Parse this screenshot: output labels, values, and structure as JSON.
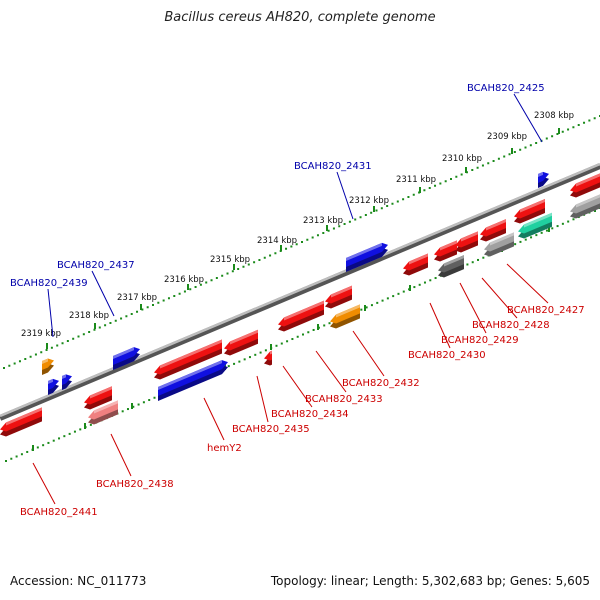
{
  "title": "Bacillus cereus AH820, complete genome",
  "footer": {
    "accession": "Accession: NC_011773",
    "summary": "Topology: linear; Length: 5,302,683 bp; Genes: 5,605"
  },
  "colors": {
    "forward_gene": "#1010e0",
    "reverse_gene": "#ee1111",
    "rrna_gene": "#f08c00",
    "pseudo_gene": "#f08080",
    "misc_gene": "#a0a0a0",
    "dark_gene": "#606060",
    "ncrna_gene": "#20d0a0",
    "forward_label": "#0000aa",
    "reverse_label": "#cc0000",
    "backbone": "#7a7a7a",
    "scale": "#1a8a1a"
  },
  "scale_labels": [
    "2308 kbp",
    "2309 kbp",
    "2310 kbp",
    "2311 kbp",
    "2312 kbp",
    "2313 kbp",
    "2314 kbp",
    "2315 kbp",
    "2316 kbp",
    "2317 kbp",
    "2318 kbp",
    "2319 kbp"
  ],
  "forward_gene_labels": [
    "BCAH820_2425",
    "BCAH820_2431",
    "BCAH820_2437",
    "BCAH820_2439"
  ],
  "reverse_gene_labels": [
    "BCAH820_2427",
    "BCAH820_2428",
    "BCAH820_2429",
    "BCAH820_2430",
    "BCAH820_2432",
    "BCAH820_2433",
    "BCAH820_2434",
    "BCAH820_2435",
    "hemY2",
    "BCAH820_2438",
    "BCAH820_2441"
  ]
}
